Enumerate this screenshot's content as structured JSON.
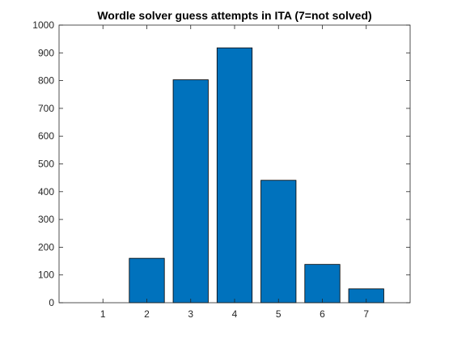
{
  "chart_data": {
    "type": "bar",
    "title": "Wordle solver guess attempts in ITA (7=not solved)",
    "xlabel": "",
    "ylabel": "",
    "categories": [
      "1",
      "2",
      "3",
      "4",
      "5",
      "6",
      "7"
    ],
    "x": [
      1,
      2,
      3,
      4,
      5,
      6,
      7
    ],
    "values": [
      0,
      160,
      803,
      918,
      441,
      138,
      50
    ],
    "xlim": [
      0,
      8
    ],
    "ylim": [
      0,
      1000
    ],
    "yticks": [
      0,
      100,
      200,
      300,
      400,
      500,
      600,
      700,
      800,
      900,
      1000
    ],
    "grid": false,
    "legend": "none",
    "bar_color": "#0072BD",
    "bar_edge_color": "#000000"
  }
}
